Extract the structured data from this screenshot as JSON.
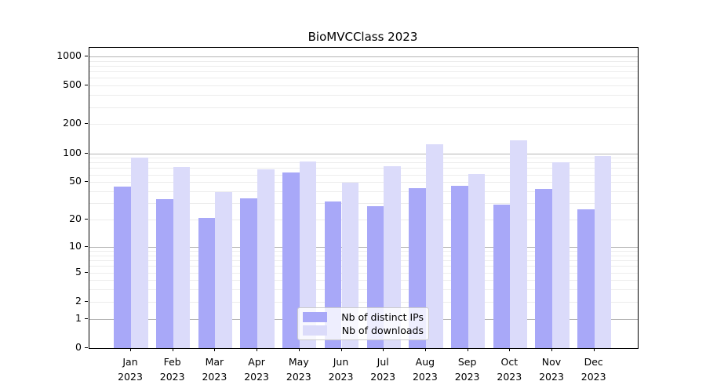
{
  "title": "BioMVCClass 2023",
  "chart_data": {
    "type": "bar",
    "title": "BioMVCClass 2023",
    "categories": [
      "Jan",
      "Feb",
      "Mar",
      "Apr",
      "May",
      "Jun",
      "Jul",
      "Aug",
      "Sep",
      "Oct",
      "Nov",
      "Dec"
    ],
    "category_year": "2023",
    "series": [
      {
        "name": "Nb of distinct IPs",
        "color": "#a8a8f8",
        "values": [
          45,
          33,
          21,
          34,
          63,
          31,
          28,
          43,
          46,
          29,
          42,
          26
        ]
      },
      {
        "name": "Nb of downloads",
        "color": "#dbdbfa",
        "values": [
          90,
          72,
          39,
          68,
          82,
          49,
          74,
          123,
          61,
          135,
          81,
          93
        ]
      }
    ],
    "xlabel": "",
    "ylabel": "",
    "y_axis": {
      "scale": "log1p",
      "tick_values": [
        0,
        1,
        2,
        5,
        10,
        20,
        50,
        100,
        200,
        500,
        1000
      ],
      "major_gridline_values": [
        1,
        10,
        100,
        1000
      ],
      "minor_gridline_values": [
        2,
        3,
        4,
        5,
        6,
        7,
        8,
        9,
        20,
        30,
        40,
        50,
        60,
        70,
        80,
        90,
        200,
        300,
        400,
        500,
        600,
        700,
        800,
        900
      ],
      "ylim_top": 1180
    },
    "grid": true,
    "legend_position": "lower center"
  },
  "colors": {
    "distinct_ips_bar": "#a8a8f8",
    "downloads_bar": "#dbdbfa",
    "major_grid": "#b5b5b5",
    "minor_grid": "#ececec",
    "spine": "#000000",
    "background": "#ffffff"
  }
}
